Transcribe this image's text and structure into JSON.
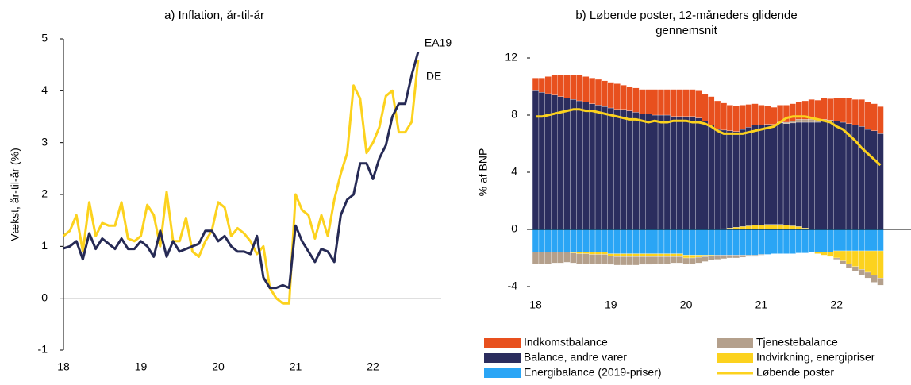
{
  "chart_data": [
    {
      "type": "line",
      "title": "a) Inflation, år-til-år",
      "ylabel": "Vækst, år-til-år (%)",
      "categories": [
        "18",
        null,
        null,
        null,
        null,
        null,
        null,
        null,
        null,
        null,
        null,
        null,
        "19",
        null,
        null,
        null,
        null,
        null,
        null,
        null,
        null,
        null,
        null,
        null,
        "20",
        null,
        null,
        null,
        null,
        null,
        null,
        null,
        null,
        null,
        null,
        null,
        "21",
        null,
        null,
        null,
        null,
        null,
        null,
        null,
        null,
        null,
        null,
        null,
        "22",
        null,
        null,
        null,
        null,
        null,
        null,
        null
      ],
      "ylim": [
        -1,
        5
      ],
      "yticks": [
        -1,
        0,
        1,
        2,
        3,
        4,
        5
      ],
      "series": [
        {
          "name": "EA19",
          "color": "#262a55",
          "values": [
            0.96,
            1.0,
            1.1,
            0.75,
            1.25,
            0.95,
            1.15,
            1.05,
            0.95,
            1.15,
            0.95,
            0.95,
            1.1,
            1.0,
            0.8,
            1.3,
            0.8,
            1.1,
            0.9,
            0.95,
            1.0,
            1.05,
            1.3,
            1.3,
            1.1,
            1.2,
            1.0,
            0.9,
            0.9,
            0.85,
            1.2,
            0.4,
            0.2,
            0.2,
            0.25,
            0.2,
            1.4,
            1.1,
            0.9,
            0.7,
            0.95,
            0.9,
            0.7,
            1.6,
            1.9,
            2.0,
            2.6,
            2.6,
            2.3,
            2.7,
            2.95,
            3.5,
            3.75,
            3.75,
            4.3,
            4.75
          ]
        },
        {
          "name": "DE",
          "color": "#fcd21e",
          "values": [
            1.2,
            1.3,
            1.6,
            0.9,
            1.85,
            1.2,
            1.45,
            1.4,
            1.4,
            1.85,
            1.15,
            1.1,
            1.2,
            1.8,
            1.6,
            1.0,
            2.05,
            1.1,
            1.1,
            1.55,
            0.9,
            0.8,
            1.1,
            1.3,
            1.85,
            1.75,
            1.2,
            1.35,
            1.25,
            1.1,
            0.85,
            1.0,
            0.2,
            0.0,
            -0.1,
            -0.1,
            2.0,
            1.7,
            1.6,
            1.15,
            1.6,
            1.2,
            1.9,
            2.4,
            2.8,
            4.1,
            3.85,
            2.8,
            3.0,
            3.3,
            3.9,
            4.0,
            3.2,
            3.2,
            3.4,
            4.6
          ]
        }
      ]
    },
    {
      "type": "stacked_bar",
      "title": "b) Løbende poster, 12-måneders glidende gennemsnit",
      "ylabel": "% af BNP",
      "categories": [
        "18",
        null,
        null,
        null,
        null,
        null,
        null,
        null,
        null,
        null,
        null,
        null,
        "19",
        null,
        null,
        null,
        null,
        null,
        null,
        null,
        null,
        null,
        null,
        null,
        "20",
        null,
        null,
        null,
        null,
        null,
        null,
        null,
        null,
        null,
        null,
        null,
        "21",
        null,
        null,
        null,
        null,
        null,
        null,
        null,
        null,
        null,
        null,
        null,
        "22",
        null,
        null,
        null,
        null,
        null,
        null,
        null
      ],
      "ylim": [
        -4,
        12
      ],
      "yticks": [
        -4,
        0,
        4,
        8,
        12
      ],
      "series": [
        {
          "name": "Indkomstbalance",
          "color": "#e8501e",
          "values": [
            0.9,
            1.0,
            1.2,
            1.4,
            1.5,
            1.6,
            1.7,
            1.8,
            1.8,
            1.8,
            1.8,
            1.8,
            1.8,
            1.8,
            1.7,
            1.7,
            1.7,
            1.7,
            1.7,
            1.8,
            1.8,
            1.8,
            1.9,
            1.9,
            1.9,
            1.9,
            1.9,
            1.9,
            2.0,
            2.0,
            1.9,
            1.8,
            1.8,
            1.7,
            1.6,
            1.5,
            1.4,
            1.3,
            1.2,
            1.2,
            1.2,
            1.2,
            1.2,
            1.3,
            1.4,
            1.4,
            1.5,
            1.5,
            1.6,
            1.7,
            1.8,
            1.8,
            1.9,
            1.9,
            1.9,
            1.9
          ]
        },
        {
          "name": "Tjenestebalance",
          "color": "#b4a08c",
          "values": [
            -0.8,
            -0.8,
            -0.8,
            -0.75,
            -0.75,
            -0.7,
            -0.7,
            -0.7,
            -0.7,
            -0.65,
            -0.65,
            -0.65,
            -0.6,
            -0.6,
            -0.6,
            -0.6,
            -0.6,
            -0.55,
            -0.55,
            -0.5,
            -0.5,
            -0.5,
            -0.45,
            -0.45,
            -0.4,
            -0.4,
            -0.4,
            -0.35,
            -0.3,
            -0.3,
            -0.25,
            -0.2,
            -0.2,
            -0.15,
            -0.1,
            -0.1,
            -0.05,
            0,
            0,
            0.05,
            0.1,
            0.15,
            0.2,
            0.2,
            0.2,
            0.15,
            0.1,
            0.05,
            -0.1,
            -0.2,
            -0.3,
            -0.3,
            -0.4,
            -0.4,
            -0.5,
            -0.5
          ]
        },
        {
          "name": "Balance, andre varer",
          "color": "#2b2d5e",
          "values": [
            9.7,
            9.6,
            9.5,
            9.4,
            9.3,
            9.2,
            9.1,
            9.0,
            8.9,
            8.8,
            8.7,
            8.6,
            8.5,
            8.4,
            8.4,
            8.3,
            8.2,
            8.1,
            8.1,
            8.0,
            8.0,
            8.0,
            7.9,
            7.9,
            7.9,
            7.9,
            7.8,
            7.6,
            7.3,
            7.0,
            6.9,
            6.8,
            6.7,
            6.8,
            6.9,
            7.0,
            7.0,
            7.0,
            7.0,
            7.1,
            7.1,
            7.2,
            7.3,
            7.4,
            7.5,
            7.5,
            7.6,
            7.6,
            7.6,
            7.5,
            7.4,
            7.3,
            7.2,
            7.0,
            6.9,
            6.7
          ]
        },
        {
          "name": "Indvirkning, energipriser",
          "color": "#fcd21e",
          "values": [
            0,
            0,
            0,
            0,
            0,
            0,
            -0.05,
            -0.1,
            -0.1,
            -0.15,
            -0.15,
            -0.15,
            -0.15,
            -0.2,
            -0.2,
            -0.2,
            -0.2,
            -0.2,
            -0.2,
            -0.2,
            -0.2,
            -0.2,
            -0.2,
            -0.2,
            -0.2,
            -0.2,
            -0.15,
            -0.1,
            -0.05,
            0,
            0.05,
            0.1,
            0.15,
            0.2,
            0.25,
            0.3,
            0.3,
            0.35,
            0.35,
            0.35,
            0.3,
            0.25,
            0.2,
            0.1,
            0,
            -0.1,
            -0.2,
            -0.3,
            -0.5,
            -0.7,
            -0.9,
            -1.1,
            -1.3,
            -1.5,
            -1.7,
            -1.9
          ]
        },
        {
          "name": "Energibalance (2019-priser)",
          "color": "#2aa5f5",
          "values": [
            -1.6,
            -1.6,
            -1.6,
            -1.6,
            -1.6,
            -1.6,
            -1.6,
            -1.6,
            -1.6,
            -1.6,
            -1.6,
            -1.6,
            -1.7,
            -1.7,
            -1.7,
            -1.7,
            -1.7,
            -1.7,
            -1.7,
            -1.7,
            -1.7,
            -1.7,
            -1.7,
            -1.7,
            -1.8,
            -1.8,
            -1.8,
            -1.8,
            -1.8,
            -1.8,
            -1.8,
            -1.8,
            -1.8,
            -1.8,
            -1.8,
            -1.8,
            -1.75,
            -1.75,
            -1.7,
            -1.7,
            -1.7,
            -1.7,
            -1.65,
            -1.65,
            -1.6,
            -1.6,
            -1.6,
            -1.6,
            -1.5,
            -1.5,
            -1.5,
            -1.5,
            -1.5,
            -1.5,
            -1.5,
            -1.5
          ]
        },
        {
          "name": "Løbende poster",
          "color": "#fcd21e",
          "type": "line",
          "values": [
            7.9,
            7.9,
            8.0,
            8.1,
            8.2,
            8.3,
            8.4,
            8.4,
            8.3,
            8.3,
            8.2,
            8.1,
            8.0,
            7.9,
            7.8,
            7.7,
            7.7,
            7.6,
            7.5,
            7.6,
            7.5,
            7.5,
            7.6,
            7.6,
            7.6,
            7.5,
            7.5,
            7.4,
            7.2,
            6.9,
            6.7,
            6.7,
            6.7,
            6.7,
            6.8,
            6.9,
            7.0,
            7.1,
            7.2,
            7.5,
            7.8,
            7.9,
            7.9,
            7.9,
            7.8,
            7.7,
            7.6,
            7.5,
            7.2,
            7.0,
            6.6,
            6.2,
            5.7,
            5.3,
            4.9,
            4.5
          ]
        }
      ]
    }
  ]
}
